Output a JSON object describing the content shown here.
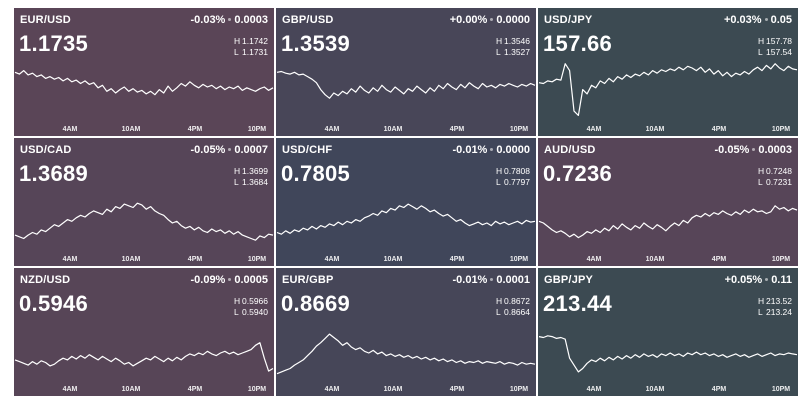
{
  "tiles": [
    {
      "pair": "EUR/USD",
      "change_pct": "-0.03%",
      "change_abs": "0.0003",
      "price": "1.1735",
      "high": "1.1742",
      "low": "1.1731",
      "bg": "#5a4557",
      "series": [
        60,
        58,
        62,
        57,
        59,
        55,
        57,
        53,
        55,
        52,
        54,
        50,
        53,
        49,
        51,
        47,
        50,
        46,
        48,
        42,
        45,
        38,
        41,
        36,
        40,
        43,
        38,
        41,
        37,
        39,
        35,
        38,
        34,
        40,
        36,
        44,
        38,
        42,
        47,
        44,
        49,
        45,
        42,
        46,
        43,
        45,
        41,
        44,
        40,
        43,
        41,
        44,
        39,
        42,
        40,
        38,
        41,
        43,
        39,
        42
      ]
    },
    {
      "pair": "GBP/USD",
      "change_pct": "+0.00%",
      "change_abs": "0.0000",
      "price": "1.3539",
      "high": "1.3546",
      "low": "1.3527",
      "bg": "#484658",
      "series": [
        60,
        61,
        59,
        58,
        60,
        57,
        58,
        55,
        52,
        48,
        40,
        34,
        30,
        36,
        33,
        38,
        35,
        41,
        37,
        44,
        39,
        36,
        42,
        38,
        45,
        40,
        37,
        43,
        39,
        35,
        41,
        38,
        44,
        40,
        36,
        42,
        38,
        45,
        41,
        47,
        43,
        40,
        46,
        42,
        48,
        44,
        41,
        47,
        43,
        45,
        42,
        46,
        44,
        47,
        45,
        43,
        46,
        44,
        47,
        45
      ]
    },
    {
      "pair": "USD/JPY",
      "change_pct": "+0.03%",
      "change_abs": "0.05",
      "price": "157.66",
      "high": "157.78",
      "low": "157.54",
      "bg": "#3c4a52",
      "series": [
        48,
        47,
        50,
        49,
        52,
        51,
        70,
        62,
        15,
        10,
        40,
        35,
        45,
        42,
        50,
        47,
        53,
        49,
        55,
        52,
        57,
        54,
        58,
        56,
        60,
        57,
        62,
        59,
        63,
        61,
        64,
        62,
        66,
        63,
        67,
        65,
        62,
        66,
        60,
        64,
        58,
        62,
        56,
        60,
        55,
        59,
        57,
        61,
        58,
        63,
        66,
        62,
        68,
        64,
        70,
        65,
        62,
        67,
        64,
        63
      ]
    },
    {
      "pair": "USD/CAD",
      "change_pct": "-0.05%",
      "change_abs": "0.0007",
      "price": "1.3689",
      "high": "1.3699",
      "low": "1.3684",
      "bg": "#564558",
      "series": [
        22,
        20,
        18,
        22,
        25,
        23,
        28,
        26,
        30,
        34,
        32,
        36,
        40,
        38,
        42,
        45,
        43,
        47,
        50,
        48,
        46,
        52,
        49,
        55,
        53,
        58,
        56,
        54,
        59,
        57,
        52,
        55,
        50,
        47,
        45,
        40,
        36,
        38,
        33,
        30,
        32,
        28,
        31,
        27,
        25,
        29,
        26,
        28,
        24,
        27,
        23,
        26,
        22,
        20,
        18,
        16,
        21,
        19,
        23,
        22
      ]
    },
    {
      "pair": "USD/CHF",
      "change_pct": "-0.01%",
      "change_abs": "0.0000",
      "price": "0.7805",
      "high": "0.7808",
      "low": "0.7797",
      "bg": "#40465a",
      "series": [
        25,
        23,
        27,
        24,
        28,
        26,
        30,
        28,
        32,
        29,
        33,
        31,
        35,
        33,
        37,
        34,
        38,
        36,
        40,
        38,
        42,
        44,
        47,
        45,
        50,
        48,
        53,
        51,
        56,
        54,
        58,
        55,
        52,
        56,
        53,
        49,
        51,
        47,
        44,
        46,
        42,
        38,
        40,
        36,
        33,
        35,
        37,
        34,
        36,
        33,
        38,
        35,
        37,
        34,
        36,
        38,
        35,
        39,
        37,
        38
      ]
    },
    {
      "pair": "AUD/USD",
      "change_pct": "-0.05%",
      "change_abs": "0.0003",
      "price": "0.7236",
      "high": "0.7248",
      "low": "0.7231",
      "bg": "#574558",
      "series": [
        38,
        36,
        32,
        28,
        25,
        27,
        24,
        20,
        23,
        19,
        22,
        26,
        24,
        28,
        25,
        30,
        27,
        33,
        29,
        35,
        31,
        28,
        33,
        30,
        36,
        32,
        29,
        34,
        31,
        27,
        32,
        36,
        33,
        39,
        36,
        42,
        45,
        43,
        47,
        44,
        48,
        46,
        50,
        47,
        45,
        49,
        46,
        51,
        48,
        52,
        49,
        50,
        47,
        49,
        56,
        52,
        54,
        50,
        53,
        51
      ]
    },
    {
      "pair": "NZD/USD",
      "change_pct": "-0.09%",
      "change_abs": "0.0005",
      "price": "0.5946",
      "high": "0.5966",
      "low": "0.5940",
      "bg": "#574557",
      "series": [
        28,
        26,
        24,
        22,
        26,
        23,
        27,
        25,
        21,
        23,
        27,
        30,
        28,
        32,
        29,
        33,
        30,
        34,
        31,
        28,
        32,
        29,
        26,
        30,
        27,
        23,
        25,
        21,
        24,
        27,
        30,
        28,
        32,
        29,
        26,
        30,
        27,
        31,
        28,
        32,
        35,
        33,
        36,
        34,
        38,
        35,
        33,
        36,
        38,
        35,
        37,
        34,
        36,
        38,
        40,
        45,
        48,
        30,
        15,
        18
      ]
    },
    {
      "pair": "EUR/GBP",
      "change_pct": "-0.01%",
      "change_abs": "0.0001",
      "price": "0.8669",
      "high": "0.8672",
      "low": "0.8664",
      "bg": "#464658",
      "series": [
        12,
        14,
        16,
        18,
        22,
        25,
        28,
        33,
        38,
        44,
        48,
        53,
        58,
        54,
        50,
        45,
        48,
        43,
        40,
        42,
        38,
        36,
        39,
        35,
        37,
        33,
        35,
        32,
        34,
        31,
        33,
        30,
        32,
        29,
        31,
        28,
        30,
        27,
        29,
        26,
        28,
        25,
        27,
        24,
        26,
        25,
        27,
        24,
        26,
        25,
        24,
        26,
        23,
        25,
        24,
        22,
        25,
        23,
        24,
        23
      ]
    },
    {
      "pair": "GBP/JPY",
      "change_pct": "+0.05%",
      "change_abs": "0.11",
      "price": "213.44",
      "high": "213.52",
      "low": "213.24",
      "bg": "#3c4a52",
      "series": [
        55,
        54,
        56,
        55,
        53,
        54,
        52,
        30,
        22,
        14,
        18,
        24,
        28,
        26,
        30,
        27,
        31,
        28,
        32,
        29,
        33,
        30,
        34,
        31,
        35,
        32,
        34,
        31,
        35,
        33,
        36,
        33,
        35,
        32,
        36,
        34,
        37,
        34,
        36,
        33,
        35,
        32,
        34,
        31,
        33,
        35,
        32,
        34,
        31,
        33,
        35,
        32,
        34,
        36,
        33,
        35,
        34,
        36,
        35,
        34
      ]
    }
  ],
  "time_labels": [
    "4AM",
    "10AM",
    "4PM",
    "10PM"
  ],
  "line_color": "#ffffff"
}
